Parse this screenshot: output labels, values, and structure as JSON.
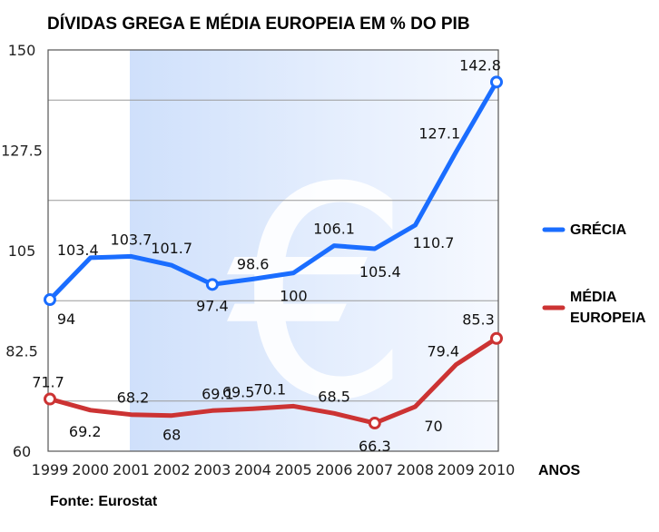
{
  "chart_data": {
    "type": "line",
    "title": "DÍVIDAS GREGA E MÉDIA EUROPEIA EM % DO PIB",
    "xlabel": "ANOS",
    "ylabel": "",
    "source": "Fonte: Eurostat",
    "x": [
      "1999",
      "2000",
      "2001",
      "2002",
      "2003",
      "2004",
      "2005",
      "2006",
      "2007",
      "2008",
      "2009",
      "2010"
    ],
    "ylim": [
      60,
      150
    ],
    "yticks": [
      "150",
      "127.5",
      "105",
      "82.5",
      "60"
    ],
    "ytick_values": [
      150,
      127.5,
      105,
      82.5,
      60
    ],
    "grid": true,
    "legend_position": "right",
    "series": [
      {
        "name": "GRÉCIA",
        "color": "#1a6dff",
        "values": [
          94,
          103.4,
          103.7,
          101.7,
          97.4,
          98.6,
          100,
          106.1,
          105.4,
          110.7,
          127.1,
          142.8
        ],
        "labels": [
          "94",
          "103.4",
          "103.7",
          "101.7",
          "97.4",
          "98.6",
          "100",
          "106.1",
          "105.4",
          "110.7",
          "127.1",
          "142.8"
        ],
        "marked_points": [
          0,
          4,
          11
        ]
      },
      {
        "name": "MÉDIA EUROPEIA",
        "legend_lines": [
          "MÉDIA",
          "EUROPEIA"
        ],
        "color": "#cc3333",
        "values": [
          71.7,
          69.2,
          68.2,
          68,
          69.1,
          69.5,
          70.1,
          68.5,
          66.3,
          70,
          79.4,
          85.3
        ],
        "labels": [
          "71.7",
          "69.2",
          "68.2",
          "68",
          "69.1",
          "69.5",
          "70.1",
          "68.5",
          "66.3",
          "70",
          "79.4",
          "85.3"
        ],
        "marked_points": [
          0,
          8,
          11
        ]
      }
    ],
    "background_symbol": "€"
  }
}
